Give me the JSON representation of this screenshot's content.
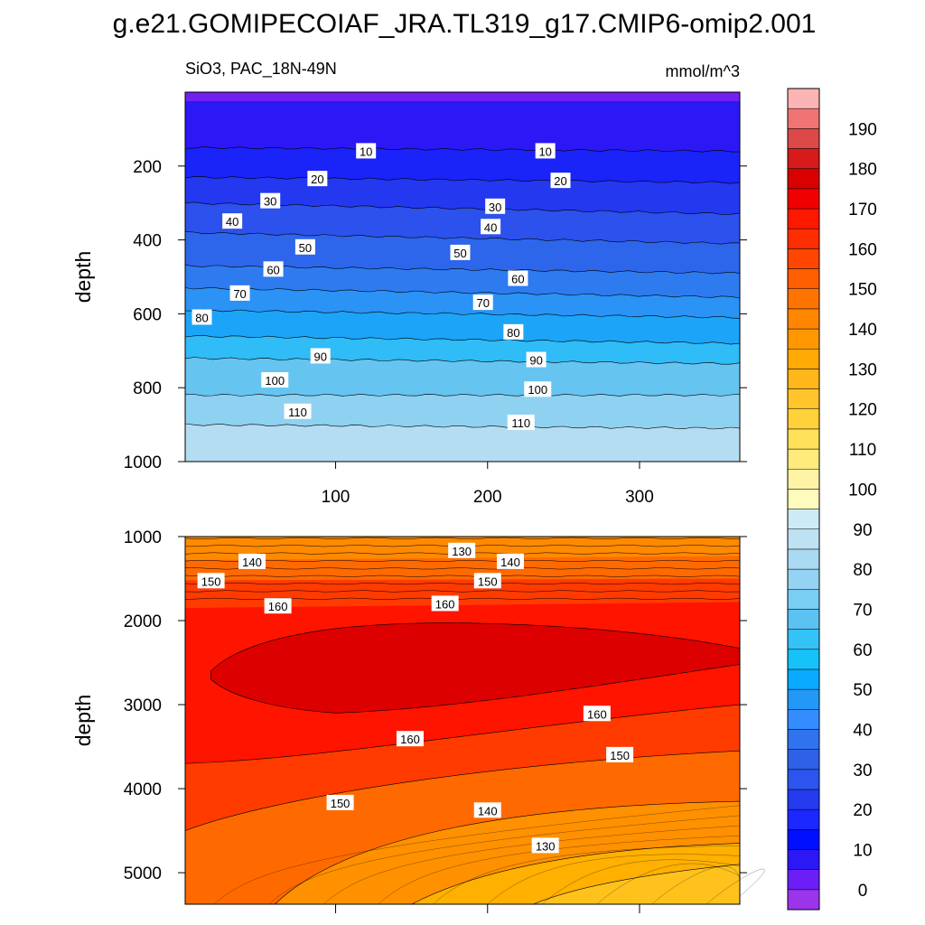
{
  "figure": {
    "title": "g.e21.GOMIPECOIAF_JRA.TL319_g17.CMIP6-omip2.001",
    "variable_region": "SiO3, PAC_18N-49N",
    "units": "mmol/m^3"
  },
  "chart_data": [
    {
      "type": "heatmap",
      "panel": "upper",
      "title": "SiO3, PAC_18N-49N",
      "units": "mmol/m^3",
      "xlabel": "",
      "ylabel": "depth",
      "xlim": [
        1,
        366
      ],
      "ylim": [
        1000,
        0
      ],
      "xticks": [
        100,
        200,
        300
      ],
      "xtick_labels": [
        "100",
        "200",
        "300"
      ],
      "yticks": [
        200,
        400,
        600,
        800,
        1000
      ],
      "ytick_labels": [
        "200",
        "400",
        "600",
        "800",
        "1000"
      ],
      "x_profile": [
        1,
        366
      ],
      "depth_profile": [
        [
          5,
          5
        ],
        [
          150,
          160
        ],
        [
          230,
          245
        ],
        [
          300,
          330
        ],
        [
          380,
          410
        ],
        [
          470,
          490
        ],
        [
          530,
          555
        ],
        [
          590,
          610
        ],
        [
          660,
          680
        ],
        [
          720,
          735
        ],
        [
          820,
          820
        ],
        [
          900,
          910
        ]
      ],
      "contour_levels": [
        5,
        10,
        20,
        30,
        40,
        50,
        60,
        70,
        80,
        90,
        100,
        110,
        120
      ],
      "contour_labels": [
        {
          "x": 120,
          "y": 160,
          "text": "10"
        },
        {
          "x": 238,
          "y": 160,
          "text": "10"
        },
        {
          "x": 88,
          "y": 235,
          "text": "20"
        },
        {
          "x": 248,
          "y": 240,
          "text": "20"
        },
        {
          "x": 57,
          "y": 295,
          "text": "30"
        },
        {
          "x": 205,
          "y": 310,
          "text": "30"
        },
        {
          "x": 32,
          "y": 350,
          "text": "40"
        },
        {
          "x": 202,
          "y": 365,
          "text": "40"
        },
        {
          "x": 80,
          "y": 420,
          "text": "50"
        },
        {
          "x": 182,
          "y": 435,
          "text": "50"
        },
        {
          "x": 59,
          "y": 480,
          "text": "60"
        },
        {
          "x": 220,
          "y": 505,
          "text": "60"
        },
        {
          "x": 37,
          "y": 545,
          "text": "70"
        },
        {
          "x": 197,
          "y": 570,
          "text": "70"
        },
        {
          "x": 12,
          "y": 610,
          "text": "80"
        },
        {
          "x": 217,
          "y": 650,
          "text": "80"
        },
        {
          "x": 90,
          "y": 715,
          "text": "90"
        },
        {
          "x": 232,
          "y": 725,
          "text": "90"
        },
        {
          "x": 60,
          "y": 780,
          "text": "100"
        },
        {
          "x": 233,
          "y": 805,
          "text": "100"
        },
        {
          "x": 75,
          "y": 865,
          "text": "110"
        },
        {
          "x": 222,
          "y": 895,
          "text": "110"
        }
      ]
    },
    {
      "type": "heatmap",
      "panel": "lower",
      "title": "",
      "xlabel": "",
      "ylabel": "depth",
      "xlim": [
        1,
        366
      ],
      "ylim": [
        5375,
        1000
      ],
      "xticks": [
        100,
        200,
        300
      ],
      "xtick_labels": [
        "",
        "",
        ""
      ],
      "yticks": [
        1000,
        2000,
        3000,
        4000,
        5000
      ],
      "ytick_labels": [
        "1000",
        "2000",
        "3000",
        "4000",
        "5000"
      ],
      "contour_levels": [
        130,
        140,
        150,
        160,
        170
      ],
      "contour_labels": [
        {
          "x": 45,
          "y": 1300,
          "text": "140"
        },
        {
          "x": 215,
          "y": 1300,
          "text": "140"
        },
        {
          "x": 18,
          "y": 1530,
          "text": "150"
        },
        {
          "x": 200,
          "y": 1530,
          "text": "150"
        },
        {
          "x": 62,
          "y": 1830,
          "text": "160"
        },
        {
          "x": 172,
          "y": 1800,
          "text": "160"
        },
        {
          "x": 183,
          "y": 1170,
          "text": "130"
        },
        {
          "x": 272,
          "y": 3110,
          "text": "160"
        },
        {
          "x": 149,
          "y": 3410,
          "text": "160"
        },
        {
          "x": 287,
          "y": 3600,
          "text": "150"
        },
        {
          "x": 103,
          "y": 4170,
          "text": "150"
        },
        {
          "x": 200,
          "y": 4260,
          "text": "140"
        },
        {
          "x": 238,
          "y": 4680,
          "text": "130"
        }
      ]
    }
  ],
  "colorbar": {
    "labels": [
      "0",
      "10",
      "20",
      "30",
      "40",
      "50",
      "60",
      "70",
      "80",
      "90",
      "100",
      "110",
      "120",
      "130",
      "140",
      "150",
      "160",
      "170",
      "180",
      "190"
    ],
    "colors": [
      "#9a35ec",
      "#6b1ef5",
      "#2c18f5",
      "#0010ff",
      "#1d27ff",
      "#243bf0",
      "#2c54ee",
      "#2f61e8",
      "#2f73ef",
      "#338dff",
      "#2398f6",
      "#09aaff",
      "#17c1fa",
      "#34c3f7",
      "#5cc2f1",
      "#79cef3",
      "#94d3f1",
      "#aad9f2",
      "#bfe2f3",
      "#ccebf6",
      "#fffbbd",
      "#fff4a6",
      "#ffea7e",
      "#ffe15a",
      "#ffd239",
      "#ffc52a",
      "#ffb71a",
      "#ffaa05",
      "#ff9800",
      "#ff8600",
      "#ff7400",
      "#ff5f00",
      "#ff4600",
      "#ff2e00",
      "#ff1800",
      "#f00000",
      "#d80000",
      "#d71a1a",
      "#dd4848",
      "#f07474",
      "#fbb4b4"
    ]
  }
}
